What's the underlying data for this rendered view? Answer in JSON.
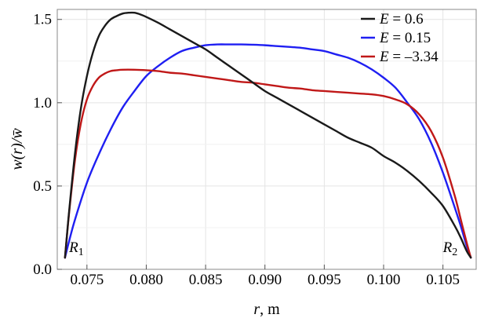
{
  "chart_data": {
    "type": "line",
    "xlabel_var": "r",
    "xlabel_unit": ", m",
    "ylabel": "w(r)/w̄",
    "xlim": [
      0.0725,
      0.1078
    ],
    "ylim": [
      0.0,
      1.56
    ],
    "x_ticks": [
      "0.075",
      "0.080",
      "0.085",
      "0.090",
      "0.095",
      "0.100",
      "0.105"
    ],
    "x_tick_values": [
      0.075,
      0.08,
      0.085,
      0.09,
      0.095,
      0.1,
      0.105
    ],
    "y_ticks": [
      "0.0",
      "0.5",
      "1.0",
      "1.5"
    ],
    "y_tick_values": [
      0.0,
      0.5,
      1.0,
      1.5
    ],
    "grid": true,
    "legend_position": "top-right",
    "annotations": [
      {
        "main": "R",
        "sub": "1",
        "x": 0.0735,
        "y": 0.05
      },
      {
        "main": "R",
        "sub": "2",
        "x": 0.105,
        "y": 0.05
      }
    ],
    "series": [
      {
        "name": "E = 0.6",
        "label_value": "0.6",
        "color": "#1a1a1a",
        "x": [
          0.07315,
          0.0735,
          0.074,
          0.0745,
          0.075,
          0.0755,
          0.076,
          0.0765,
          0.077,
          0.0775,
          0.078,
          0.0785,
          0.079,
          0.0795,
          0.08,
          0.081,
          0.082,
          0.083,
          0.084,
          0.085,
          0.086,
          0.087,
          0.088,
          0.089,
          0.09,
          0.091,
          0.092,
          0.093,
          0.094,
          0.095,
          0.096,
          0.097,
          0.098,
          0.099,
          0.1,
          0.101,
          0.102,
          0.103,
          0.104,
          0.105,
          0.106,
          0.1065,
          0.107,
          0.10735
        ],
        "y": [
          0.07,
          0.35,
          0.7,
          0.97,
          1.16,
          1.3,
          1.4,
          1.46,
          1.5,
          1.52,
          1.535,
          1.54,
          1.54,
          1.53,
          1.515,
          1.48,
          1.44,
          1.4,
          1.36,
          1.32,
          1.27,
          1.22,
          1.17,
          1.12,
          1.07,
          1.03,
          0.99,
          0.95,
          0.91,
          0.87,
          0.83,
          0.79,
          0.76,
          0.73,
          0.68,
          0.64,
          0.59,
          0.53,
          0.46,
          0.38,
          0.26,
          0.19,
          0.11,
          0.07
        ]
      },
      {
        "name": "E = 0.15",
        "label_value": "0.15",
        "color": "#1f1ff2",
        "x": [
          0.07315,
          0.0735,
          0.074,
          0.075,
          0.076,
          0.077,
          0.078,
          0.079,
          0.08,
          0.081,
          0.082,
          0.083,
          0.084,
          0.085,
          0.086,
          0.087,
          0.088,
          0.089,
          0.09,
          0.091,
          0.092,
          0.093,
          0.094,
          0.095,
          0.096,
          0.097,
          0.098,
          0.099,
          0.1,
          0.101,
          0.102,
          0.103,
          0.104,
          0.105,
          0.106,
          0.1065,
          0.107,
          0.10735
        ],
        "y": [
          0.07,
          0.17,
          0.3,
          0.52,
          0.69,
          0.84,
          0.97,
          1.07,
          1.16,
          1.22,
          1.27,
          1.31,
          1.33,
          1.345,
          1.35,
          1.35,
          1.35,
          1.348,
          1.345,
          1.34,
          1.335,
          1.33,
          1.32,
          1.31,
          1.29,
          1.27,
          1.24,
          1.2,
          1.15,
          1.09,
          1.0,
          0.9,
          0.76,
          0.58,
          0.37,
          0.26,
          0.14,
          0.07
        ]
      },
      {
        "name": "E = −3.34",
        "label_value": "–3.34",
        "color": "#c01818",
        "x": [
          0.07315,
          0.0735,
          0.074,
          0.0745,
          0.075,
          0.0755,
          0.076,
          0.0765,
          0.077,
          0.0775,
          0.078,
          0.079,
          0.08,
          0.081,
          0.082,
          0.083,
          0.084,
          0.085,
          0.086,
          0.087,
          0.088,
          0.089,
          0.09,
          0.091,
          0.092,
          0.093,
          0.094,
          0.095,
          0.096,
          0.097,
          0.098,
          0.099,
          0.1,
          0.101,
          0.102,
          0.103,
          0.104,
          0.105,
          0.106,
          0.1065,
          0.107,
          0.10735
        ],
        "y": [
          0.07,
          0.34,
          0.66,
          0.88,
          1.02,
          1.1,
          1.15,
          1.175,
          1.19,
          1.195,
          1.198,
          1.198,
          1.195,
          1.19,
          1.18,
          1.175,
          1.165,
          1.155,
          1.145,
          1.135,
          1.125,
          1.12,
          1.11,
          1.1,
          1.09,
          1.085,
          1.075,
          1.07,
          1.065,
          1.06,
          1.055,
          1.05,
          1.04,
          1.02,
          0.99,
          0.93,
          0.83,
          0.67,
          0.44,
          0.3,
          0.16,
          0.07
        ]
      }
    ]
  }
}
